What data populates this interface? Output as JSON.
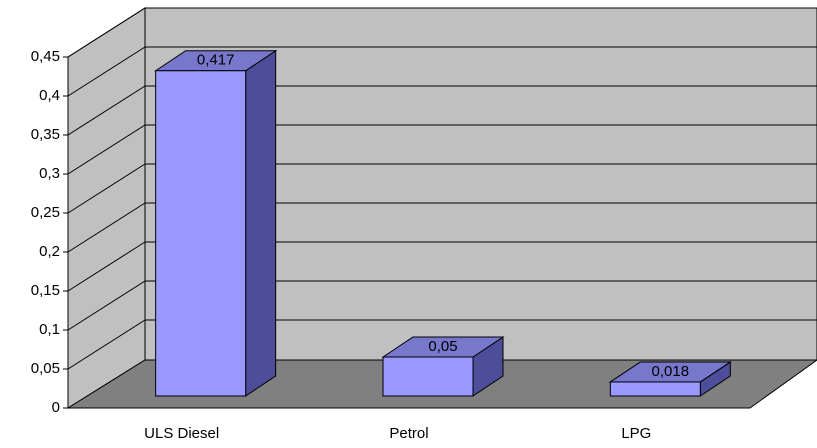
{
  "chart_data": {
    "type": "bar3d",
    "categories": [
      "ULS Diesel",
      "Petrol",
      "LPG"
    ],
    "values": [
      0.417,
      0.05,
      0.018
    ],
    "value_labels": [
      "0,417",
      "0,05",
      "0,018"
    ],
    "color": "#9999ff",
    "ylim": [
      0,
      0.45
    ],
    "yticks": [
      0,
      {
        "value": 0.05,
        "label": "0,05"
      },
      {
        "value": 0.1,
        "label": "0,1"
      },
      {
        "value": 0.15,
        "label": "0,15"
      },
      {
        "value": 0.2,
        "label": "0,2"
      },
      {
        "value": 0.25,
        "label": "0,25"
      },
      {
        "value": 0.3,
        "label": "0,3"
      },
      {
        "value": 0.35,
        "label": "0,35"
      },
      {
        "value": 0.4,
        "label": "0,4"
      },
      {
        "value": 0.45,
        "label": "0,45"
      }
    ],
    "grid": true
  }
}
